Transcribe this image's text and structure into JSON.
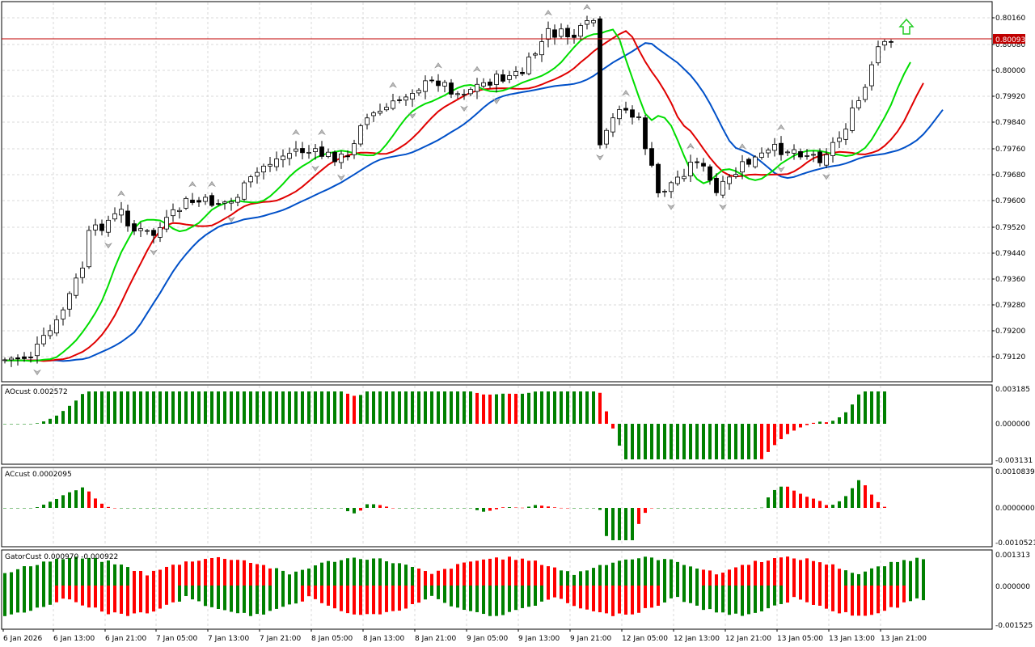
{
  "panes": {
    "main": {
      "price_tag": "0.80093",
      "price_ticks": [
        "0.80160",
        "0.80080",
        "0.80000",
        "0.79920",
        "0.79840",
        "0.79760",
        "0.79680",
        "0.79600",
        "0.79520",
        "0.79440",
        "0.79360",
        "0.79280",
        "0.79200",
        "0.79120"
      ]
    },
    "ao": {
      "title": "AOcust 0.002572",
      "ticks": [
        "0.003185",
        "0.000000",
        "-0.003131"
      ]
    },
    "ac": {
      "title": "ACcust 0.0002095",
      "ticks": [
        "0.0010839",
        "0.0000000",
        "-0.0010521"
      ]
    },
    "gator": {
      "title": "GatorCust 0.000970 -0.000922",
      "ticks": [
        "0.001313",
        "0.000000",
        "-0.001525"
      ]
    }
  },
  "time_labels": [
    "6 Jan 2026",
    "6 Jan 13:00",
    "6 Jan 21:00",
    "7 Jan 05:00",
    "7 Jan 13:00",
    "7 Jan 21:00",
    "8 Jan 05:00",
    "8 Jan 13:00",
    "8 Jan 21:00",
    "9 Jan 05:00",
    "9 Jan 13:00",
    "9 Jan 21:00",
    "12 Jan 05:00",
    "12 Jan 13:00",
    "12 Jan 21:00",
    "13 Jan 05:00",
    "13 Jan 13:00",
    "13 Jan 21:00"
  ],
  "colors": {
    "up_bar": "#008000",
    "down_bar": "#ff0000",
    "jaw": "#0050c8",
    "teeth": "#e00000",
    "lips": "#00dd00",
    "candle": "#000000",
    "grid": "#d8d8d8",
    "price_line": "#c00000",
    "arrow_up": "#22cc22"
  },
  "chart_data": [
    {
      "type": "candlestick",
      "title": "",
      "ylim": [
        0.7906,
        0.8021
      ],
      "candles_count": 138,
      "close_first": 0.79112,
      "close_last": 0.80093,
      "indicators": [
        "Alligator jaw",
        "Alligator teeth",
        "Alligator lips",
        "Fractals"
      ]
    },
    {
      "type": "bar",
      "series": [
        {
          "name": "AOcust",
          "last": 0.002572
        }
      ],
      "ylim": [
        -0.003131,
        0.003185
      ]
    },
    {
      "type": "bar",
      "series": [
        {
          "name": "ACcust",
          "last": 0.0002095
        }
      ],
      "ylim": [
        -0.0010521,
        0.0010839
      ]
    },
    {
      "type": "bar",
      "series": [
        {
          "name": "GatorCust",
          "upper": 0.00097,
          "lower": -0.000922
        }
      ],
      "ylim": [
        -0.001525,
        0.001313
      ]
    }
  ]
}
